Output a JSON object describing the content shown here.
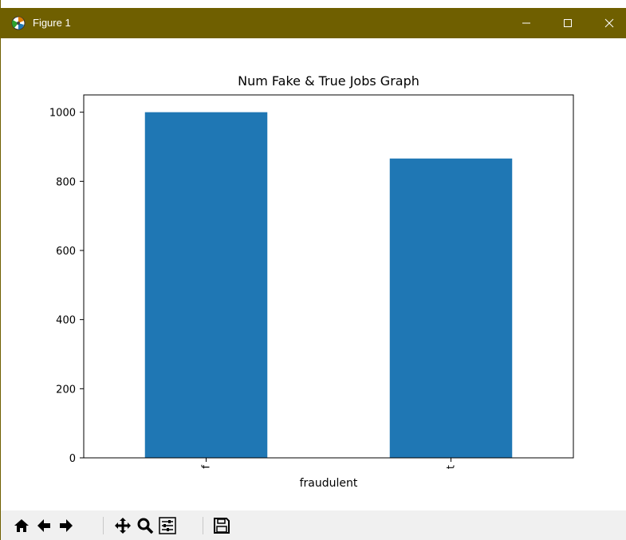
{
  "window": {
    "title": "Figure 1",
    "titlebar_color": "#6f5f00",
    "controls": [
      "minimize-icon",
      "maximize-icon",
      "close-icon"
    ]
  },
  "chart_data": {
    "type": "bar",
    "title": "Num Fake & True Jobs Graph",
    "xlabel": "fraudulent",
    "ylabel": "",
    "categories": [
      "f",
      "t"
    ],
    "values": [
      1000,
      866
    ],
    "ylim": [
      0,
      1050
    ],
    "yticks": [
      0,
      200,
      400,
      600,
      800,
      1000
    ],
    "bar_color": "#1f77b4",
    "grid": false,
    "legend": "none"
  },
  "toolbar": {
    "buttons": [
      "home-icon",
      "back-icon",
      "forward-icon",
      "pan-icon",
      "zoom-icon",
      "configure-subplots-icon",
      "save-icon"
    ]
  }
}
